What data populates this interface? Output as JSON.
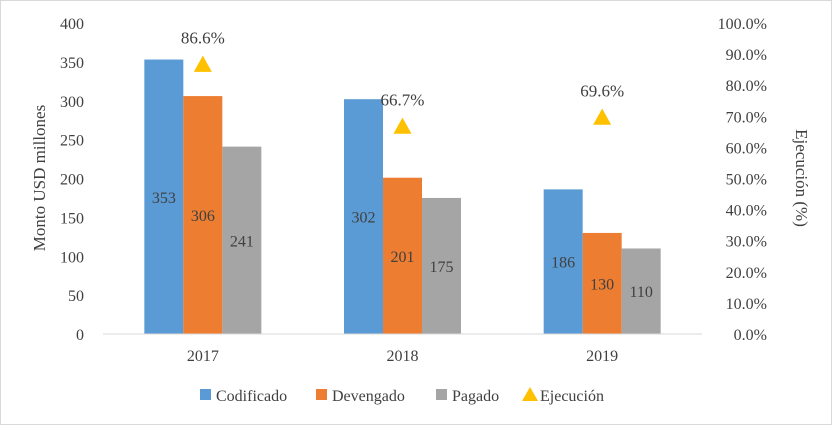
{
  "chart_data": {
    "type": "bar",
    "categories": [
      "2017",
      "2018",
      "2019"
    ],
    "series": [
      {
        "name": "Codificado",
        "color": "#5b9bd5",
        "values": [
          353,
          302,
          186
        ],
        "data_labels": [
          "353",
          "302",
          "186"
        ]
      },
      {
        "name": "Devengado",
        "color": "#ed7d31",
        "values": [
          306,
          201,
          130
        ],
        "data_labels": [
          "306",
          "201",
          "130"
        ]
      },
      {
        "name": "Pagado",
        "color": "#a5a5a5",
        "values": [
          241,
          175,
          110
        ],
        "data_labels": [
          "241",
          "175",
          "110"
        ]
      }
    ],
    "secondary_series": {
      "name": "Ejecución",
      "type": "scatter",
      "marker": "triangle",
      "color": "#ffc000",
      "values": [
        86.6,
        66.7,
        69.6
      ],
      "data_labels": [
        "86.6%",
        "66.7%",
        "69.6%"
      ]
    },
    "ylabel": "Monto USD millones",
    "y2label": "Ejecución (%)",
    "ylim": [
      0,
      400
    ],
    "yticks": [
      "0",
      "50",
      "100",
      "150",
      "200",
      "250",
      "300",
      "350",
      "400"
    ],
    "y2lim": [
      0,
      100
    ],
    "y2ticks": [
      "0.0%",
      "10.0%",
      "20.0%",
      "30.0%",
      "40.0%",
      "50.0%",
      "60.0%",
      "70.0%",
      "80.0%",
      "90.0%",
      "100.0%"
    ],
    "legend": [
      "Codificado",
      "Devengado",
      "Pagado",
      "Ejecución"
    ],
    "legend_position": "bottom",
    "grid": false
  }
}
